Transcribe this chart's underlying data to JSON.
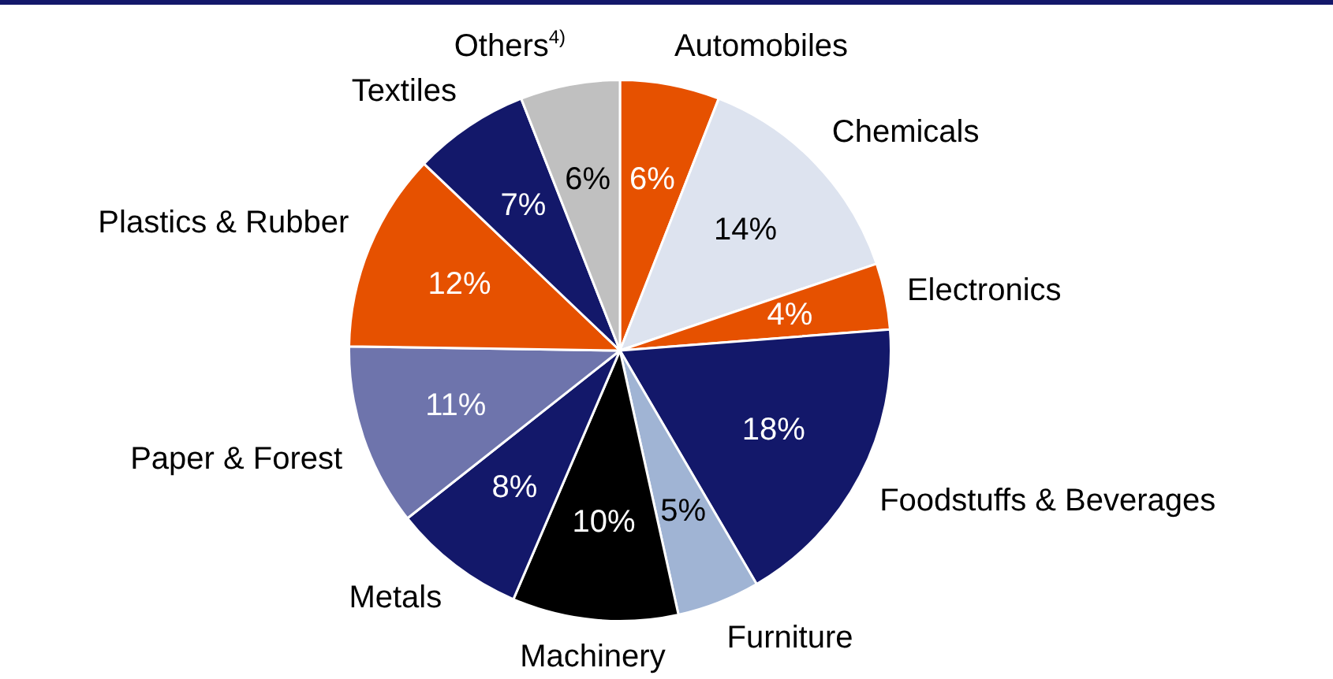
{
  "chart_data": {
    "type": "pie",
    "categories": [
      "Automobiles",
      "Chemicals",
      "Electronics",
      "Foodstuffs & Beverages",
      "Furniture",
      "Machinery",
      "Metals",
      "Paper & Forest",
      "Plastics & Rubber",
      "Textiles",
      "Others$^{4)}$"
    ],
    "values": [
      6,
      14,
      4,
      18,
      5,
      10,
      8,
      11,
      12,
      7,
      6
    ],
    "value_labels": [
      "6%",
      "14%",
      "4%",
      "18%",
      "5%",
      "10%",
      "8%",
      "11%",
      "12%",
      "7%",
      "6%"
    ],
    "colors": [
      "#e65100",
      "#dde3ef",
      "#e65100",
      "#13186a",
      "#a0b4d4",
      "#000000",
      "#13186a",
      "#6e74ac",
      "#e65100",
      "#13186a",
      "#c0c0c0"
    ],
    "legend": false
  }
}
